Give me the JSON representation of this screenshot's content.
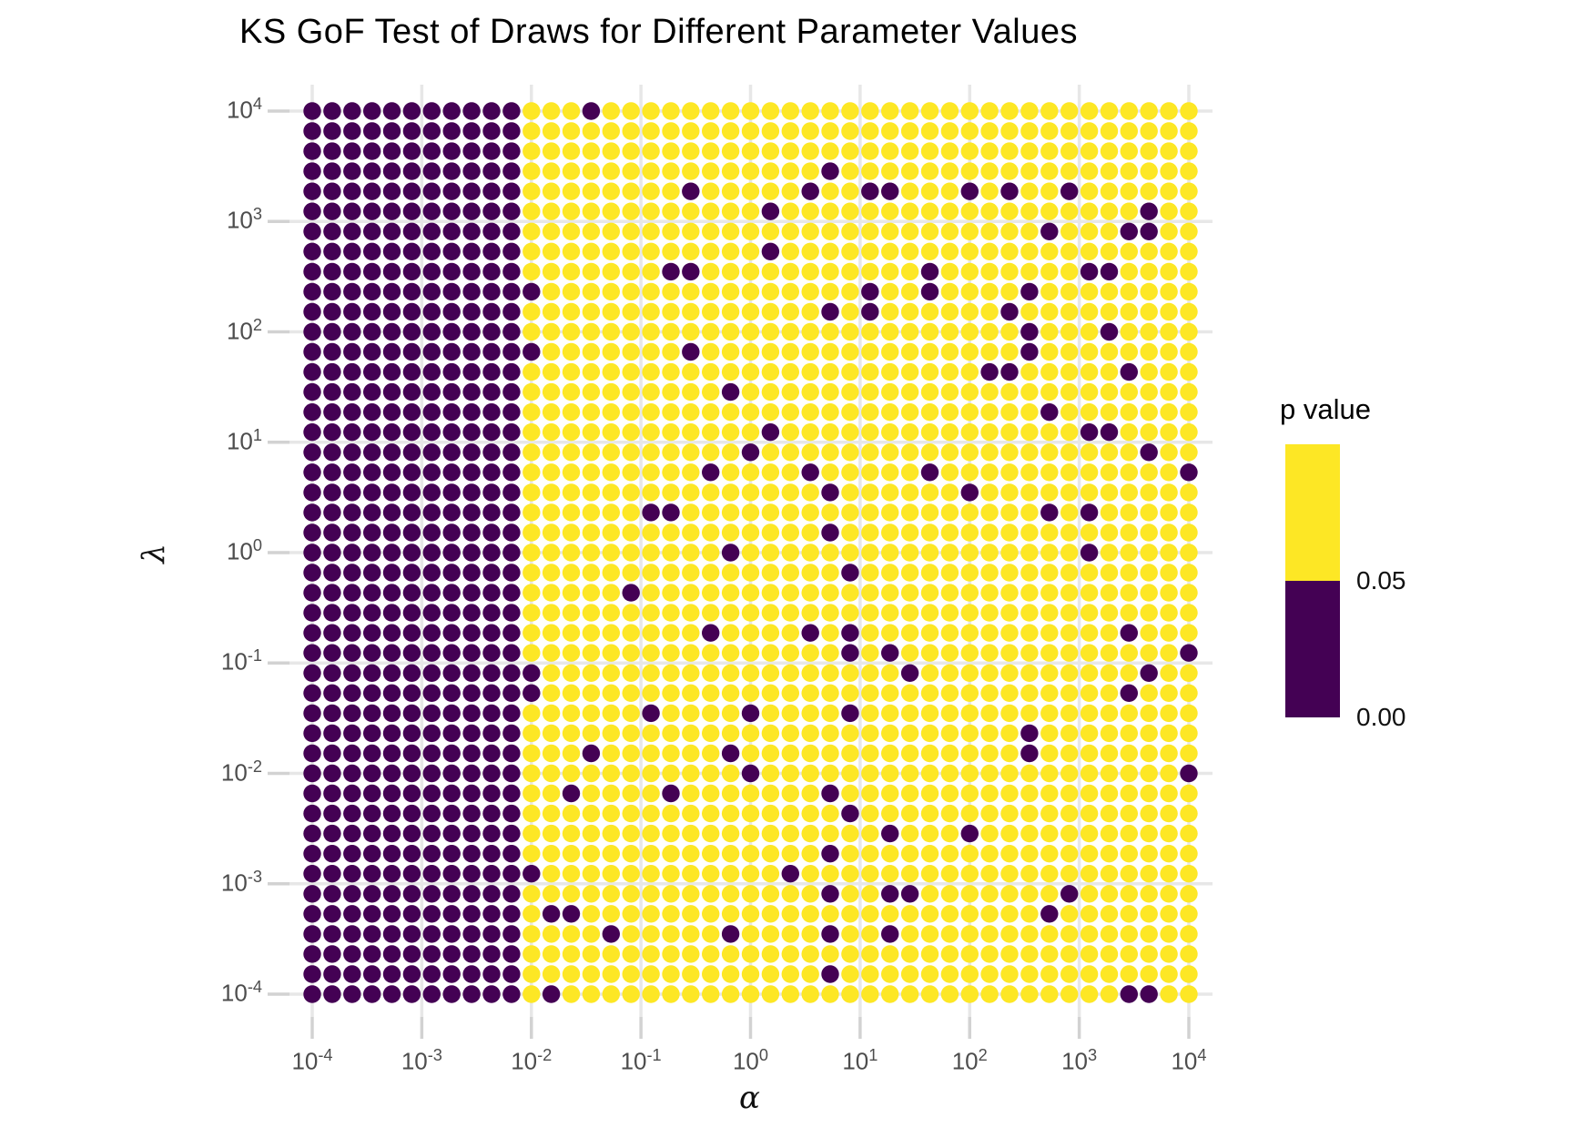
{
  "title": "KS GoF Test of Draws for Different Parameter Values",
  "chart_data": {
    "type": "scatter",
    "title": "KS GoF Test of Draws for Different Parameter Values",
    "xlabel": "α",
    "ylabel": "λ",
    "x_scale": "log10",
    "y_scale": "log10",
    "xlim_exp": [
      -4,
      4
    ],
    "ylim_exp": [
      -4,
      4
    ],
    "tick_base": "10",
    "x_tick_exponents": [
      -4,
      -3,
      -2,
      -1,
      0,
      1,
      2,
      3,
      4
    ],
    "y_tick_exponents": [
      4,
      3,
      2,
      1,
      0,
      -1,
      -2,
      -3,
      -4
    ],
    "grid": {
      "n_cols": 45,
      "n_rows": 45,
      "description": "45x45 grid of draws; alpha and lambda each log-spaced from 1e-4 to 1e4 (8/44 decade steps)"
    },
    "encoding": "point color encodes KS test p value: dark (< 0.05) vs yellow (>= 0.05)",
    "dark_block_max_col": 10,
    "dark_block_rule": "every point with alpha at or below column 10 (alpha < 1e-2) has p < 0.05",
    "outliers_rowcol": [
      [
        0,
        14
      ],
      [
        3,
        26
      ],
      [
        4,
        19
      ],
      [
        4,
        25
      ],
      [
        4,
        28
      ],
      [
        4,
        29
      ],
      [
        4,
        33
      ],
      [
        4,
        35
      ],
      [
        4,
        38
      ],
      [
        5,
        23
      ],
      [
        5,
        42
      ],
      [
        6,
        37
      ],
      [
        6,
        41
      ],
      [
        6,
        42
      ],
      [
        7,
        23
      ],
      [
        8,
        18
      ],
      [
        8,
        19
      ],
      [
        8,
        31
      ],
      [
        8,
        39
      ],
      [
        8,
        40
      ],
      [
        9,
        11
      ],
      [
        9,
        28
      ],
      [
        9,
        31
      ],
      [
        9,
        36
      ],
      [
        10,
        26
      ],
      [
        10,
        28
      ],
      [
        10,
        35
      ],
      [
        11,
        36
      ],
      [
        11,
        40
      ],
      [
        12,
        11
      ],
      [
        12,
        19
      ],
      [
        12,
        36
      ],
      [
        13,
        34
      ],
      [
        13,
        35
      ],
      [
        13,
        41
      ],
      [
        14,
        21
      ],
      [
        15,
        37
      ],
      [
        16,
        23
      ],
      [
        16,
        39
      ],
      [
        16,
        40
      ],
      [
        17,
        22
      ],
      [
        17,
        42
      ],
      [
        18,
        20
      ],
      [
        18,
        25
      ],
      [
        18,
        31
      ],
      [
        18,
        44
      ],
      [
        19,
        26
      ],
      [
        19,
        33
      ],
      [
        20,
        17
      ],
      [
        20,
        18
      ],
      [
        20,
        37
      ],
      [
        20,
        39
      ],
      [
        21,
        26
      ],
      [
        22,
        21
      ],
      [
        22,
        39
      ],
      [
        23,
        27
      ],
      [
        24,
        16
      ],
      [
        26,
        20
      ],
      [
        26,
        25
      ],
      [
        26,
        27
      ],
      [
        26,
        41
      ],
      [
        27,
        27
      ],
      [
        27,
        29
      ],
      [
        27,
        44
      ],
      [
        28,
        11
      ],
      [
        28,
        30
      ],
      [
        28,
        42
      ],
      [
        29,
        11
      ],
      [
        29,
        41
      ],
      [
        30,
        17
      ],
      [
        30,
        22
      ],
      [
        30,
        27
      ],
      [
        31,
        36
      ],
      [
        32,
        14
      ],
      [
        32,
        21
      ],
      [
        32,
        36
      ],
      [
        33,
        22
      ],
      [
        33,
        44
      ],
      [
        34,
        13
      ],
      [
        34,
        18
      ],
      [
        34,
        26
      ],
      [
        35,
        27
      ],
      [
        36,
        29
      ],
      [
        36,
        33
      ],
      [
        37,
        26
      ],
      [
        38,
        11
      ],
      [
        38,
        24
      ],
      [
        39,
        26
      ],
      [
        39,
        29
      ],
      [
        39,
        30
      ],
      [
        39,
        38
      ],
      [
        40,
        12
      ],
      [
        40,
        13
      ],
      [
        40,
        37
      ],
      [
        41,
        15
      ],
      [
        41,
        21
      ],
      [
        41,
        26
      ],
      [
        41,
        29
      ],
      [
        43,
        26
      ],
      [
        44,
        12
      ],
      [
        44,
        41
      ],
      [
        44,
        42
      ]
    ],
    "colors": {
      "low": "#440154",
      "high": "#FDE725",
      "gridline": "#E7E7E7",
      "tick": "#D2D2D2",
      "tick_text": "#4d4d4d"
    },
    "legend": {
      "title": "p value",
      "labels": [
        "0.05",
        "0.00"
      ],
      "segments": [
        {
          "color": "#FDE725",
          "meaning": "p value above 0.05"
        },
        {
          "color": "#440154",
          "meaning": "p value between 0.00 and 0.05"
        }
      ],
      "position": "right"
    },
    "grid_on": true,
    "legend_type": "binned colorbar"
  }
}
